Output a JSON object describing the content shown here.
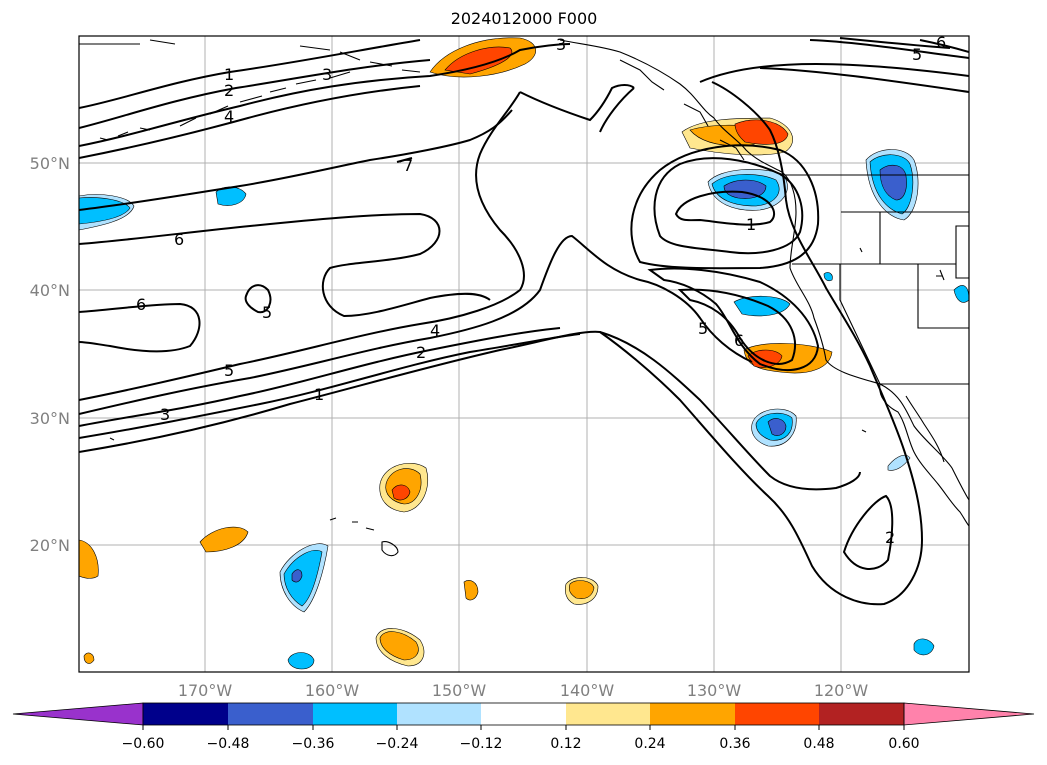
{
  "title": "2024012000 F000",
  "map": {
    "lon_labels": [
      "170°W",
      "160°W",
      "150°W",
      "140°W",
      "130°W",
      "120°W"
    ],
    "lat_labels": [
      "50°N",
      "40°N",
      "30°N",
      "20°N"
    ]
  },
  "contour_labels": [
    "1",
    "2",
    "3",
    "4",
    "5",
    "6",
    "7"
  ],
  "colorbar": {
    "tick_labels": [
      "−0.60",
      "−0.48",
      "−0.36",
      "−0.24",
      "−0.12",
      "0.12",
      "0.24",
      "0.36",
      "0.48",
      "0.60"
    ],
    "colors": [
      "#9932cc",
      "#00008b",
      "#3a5fcd",
      "#00bfff",
      "#b0e2ff",
      "#ffffff",
      "#ffe78f",
      "#ffa500",
      "#ff4500",
      "#b22222",
      "#ff82ab"
    ]
  }
}
